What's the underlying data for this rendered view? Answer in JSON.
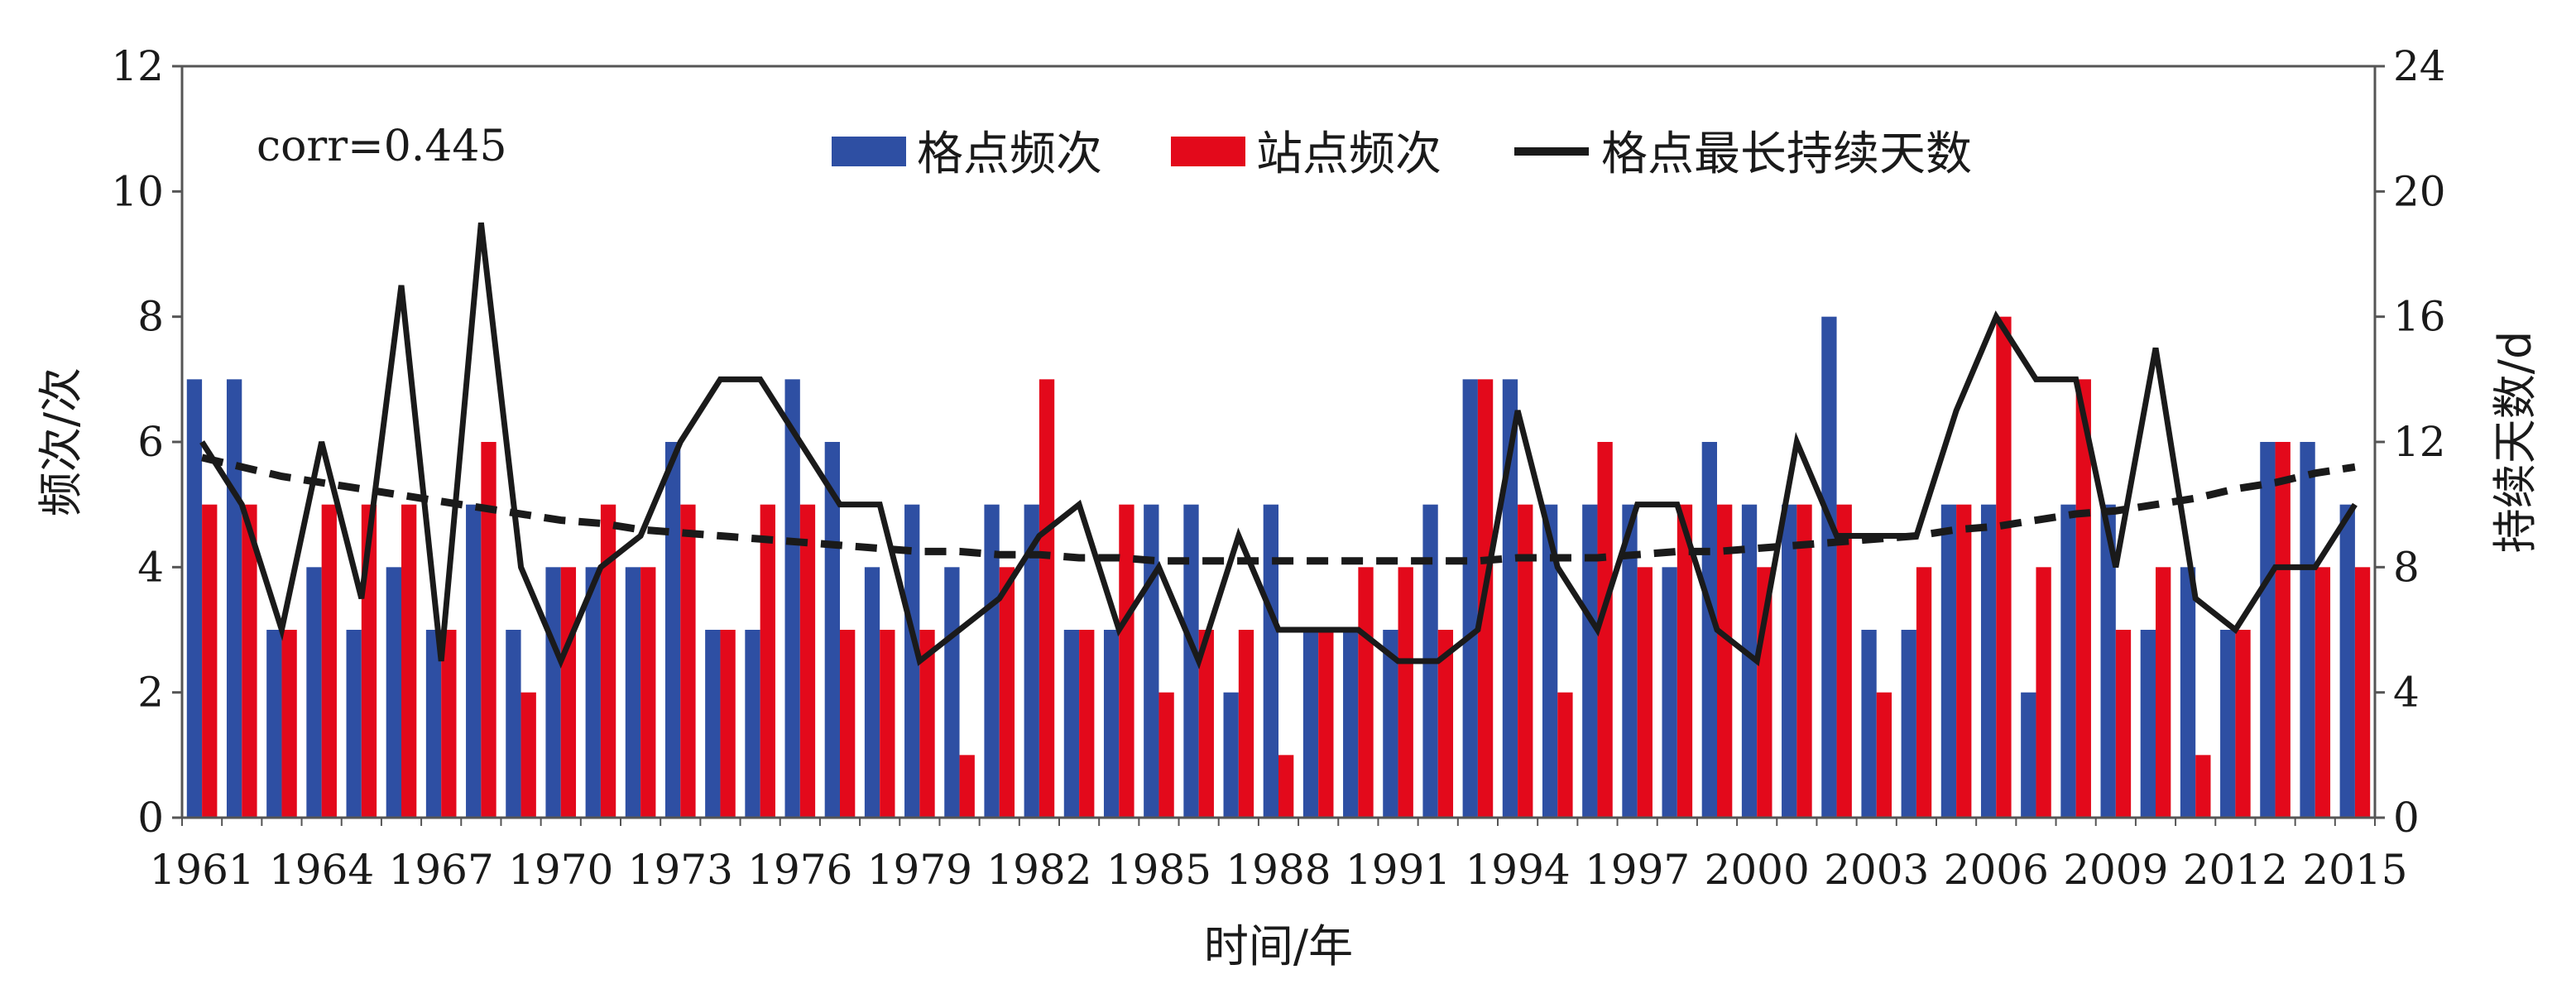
{
  "chart_data": {
    "type": "bar",
    "categories": [
      1961,
      1962,
      1963,
      1964,
      1965,
      1966,
      1967,
      1968,
      1969,
      1970,
      1971,
      1972,
      1973,
      1974,
      1975,
      1976,
      1977,
      1978,
      1979,
      1980,
      1981,
      1982,
      1983,
      1984,
      1985,
      1986,
      1987,
      1988,
      1989,
      1990,
      1991,
      1992,
      1993,
      1994,
      1995,
      1996,
      1997,
      1998,
      1999,
      2000,
      2001,
      2002,
      2003,
      2004,
      2005,
      2006,
      2007,
      2008,
      2009,
      2010,
      2011,
      2012,
      2013,
      2014,
      2015
    ],
    "x_tick_labels": [
      "1961",
      "1964",
      "1967",
      "1970",
      "1973",
      "1976",
      "1979",
      "1982",
      "1985",
      "1988",
      "1991",
      "1994",
      "1997",
      "2000",
      "2003",
      "2006",
      "2009",
      "2012",
      "2015"
    ],
    "xlabel": "时间/年",
    "ylabel_left": "频次/次",
    "ylabel_right": "持续天数/d",
    "ylim_left": [
      0,
      12
    ],
    "yticks_left": [
      0,
      2,
      4,
      6,
      8,
      10,
      12
    ],
    "ylim_right": [
      0,
      24
    ],
    "yticks_right": [
      0,
      4,
      8,
      12,
      16,
      20,
      24
    ],
    "annotation": "corr=0.445",
    "legend_position": "top-center",
    "series": [
      {
        "name": "格点频次",
        "type": "bar",
        "axis": "left",
        "color": "#2e4fa3",
        "values": [
          7,
          7,
          3,
          4,
          3,
          4,
          3,
          5,
          3,
          4,
          4,
          4,
          6,
          3,
          3,
          7,
          6,
          4,
          5,
          4,
          5,
          5,
          3,
          3,
          5,
          5,
          2,
          5,
          3,
          3,
          3,
          5,
          7,
          7,
          5,
          5,
          5,
          4,
          6,
          5,
          5,
          8,
          3,
          3,
          5,
          5,
          2,
          5,
          5,
          3,
          4,
          3,
          6,
          6,
          5
        ]
      },
      {
        "name": "站点频次",
        "type": "bar",
        "axis": "left",
        "color": "#e3091b",
        "values": [
          5,
          5,
          3,
          5,
          5,
          5,
          3,
          6,
          2,
          4,
          5,
          4,
          5,
          3,
          5,
          5,
          3,
          3,
          3,
          1,
          4,
          7,
          3,
          5,
          2,
          3,
          3,
          1,
          3,
          4,
          4,
          3,
          7,
          5,
          2,
          6,
          4,
          5,
          5,
          4,
          5,
          5,
          2,
          4,
          5,
          8,
          4,
          7,
          3,
          4,
          1,
          3,
          6,
          4,
          4
        ]
      },
      {
        "name": "格点最长持续天数",
        "type": "line",
        "axis": "right",
        "color": "#1a1a1a",
        "values": [
          12,
          10,
          6,
          12,
          7,
          17,
          5,
          19,
          8,
          5,
          8,
          9,
          12,
          14,
          14,
          12,
          10,
          10,
          5,
          6,
          7,
          9,
          10,
          6,
          8,
          5,
          9,
          6,
          6,
          6,
          5,
          5,
          6,
          13,
          8,
          6,
          10,
          10,
          6,
          5,
          12,
          9,
          9,
          9,
          13,
          16,
          14,
          14,
          8,
          15,
          7,
          6,
          8,
          8,
          10
        ]
      },
      {
        "type": "trendline",
        "axis": "right",
        "color": "#1a1a1a",
        "style": "dashed",
        "values": [
          11.5,
          11.2,
          10.9,
          10.7,
          10.5,
          10.3,
          10.1,
          9.9,
          9.7,
          9.5,
          9.4,
          9.2,
          9.1,
          9.0,
          8.9,
          8.8,
          8.7,
          8.6,
          8.5,
          8.5,
          8.4,
          8.4,
          8.3,
          8.3,
          8.2,
          8.2,
          8.2,
          8.2,
          8.2,
          8.2,
          8.2,
          8.2,
          8.2,
          8.3,
          8.3,
          8.3,
          8.4,
          8.5,
          8.5,
          8.6,
          8.7,
          8.8,
          8.9,
          9.0,
          9.2,
          9.3,
          9.5,
          9.7,
          9.8,
          10.0,
          10.2,
          10.5,
          10.7,
          11.0,
          11.2
        ]
      }
    ]
  }
}
